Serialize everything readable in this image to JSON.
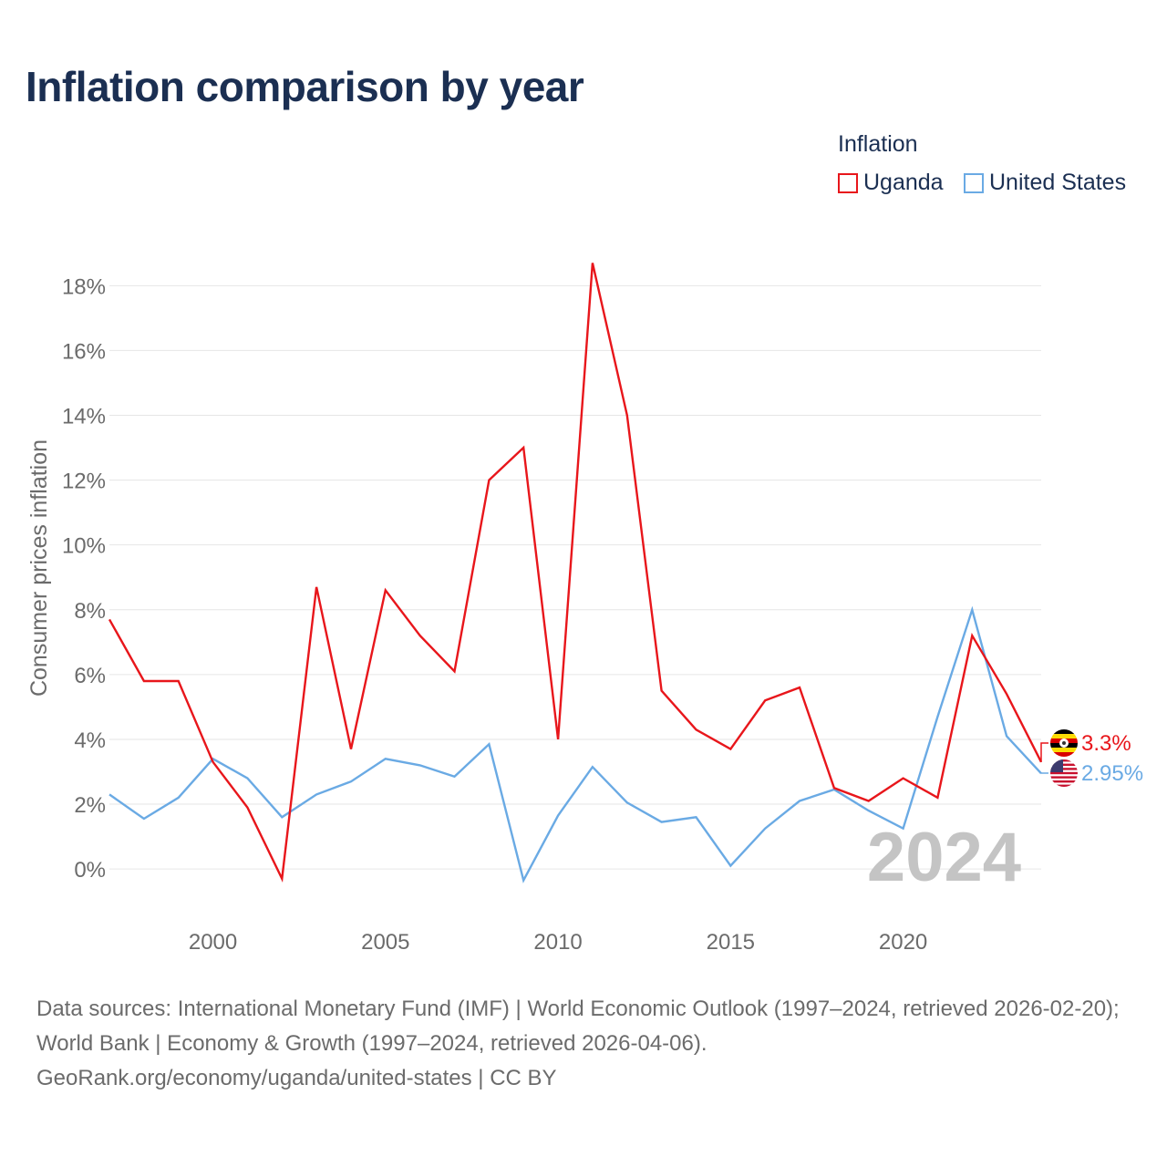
{
  "title": "Inflation comparison by year",
  "legend": {
    "title": "Inflation",
    "items": [
      {
        "label": "Uganda",
        "color": "#e8161b"
      },
      {
        "label": "United States",
        "color": "#6aaae4"
      }
    ]
  },
  "chart_data": {
    "type": "line",
    "title": "Inflation comparison by year",
    "xlabel": "",
    "ylabel": "Consumer prices inflation",
    "x": [
      1997,
      1998,
      1999,
      2000,
      2001,
      2002,
      2003,
      2004,
      2005,
      2006,
      2007,
      2008,
      2009,
      2010,
      2011,
      2012,
      2013,
      2014,
      2015,
      2016,
      2017,
      2018,
      2019,
      2020,
      2021,
      2022,
      2023,
      2024
    ],
    "xlim": [
      1997,
      2024
    ],
    "ylim": [
      -1.6,
      19.5
    ],
    "x_ticks": [
      2000,
      2005,
      2010,
      2015,
      2020
    ],
    "x_tick_labels": [
      "2000",
      "2005",
      "2010",
      "2015",
      "2020"
    ],
    "y_ticks": [
      0,
      2,
      4,
      6,
      8,
      10,
      12,
      14,
      16,
      18
    ],
    "y_tick_labels": [
      "0%",
      "2%",
      "4%",
      "6%",
      "8%",
      "10%",
      "12%",
      "14%",
      "16%",
      "18%"
    ],
    "grid": true,
    "legend_position": "top-right",
    "series": [
      {
        "name": "Uganda",
        "color": "#e8161b",
        "values": [
          7.7,
          5.8,
          5.8,
          3.3,
          1.9,
          -0.3,
          8.7,
          3.7,
          8.6,
          7.2,
          6.1,
          12.0,
          13.0,
          4.0,
          18.7,
          14.0,
          5.5,
          4.3,
          3.7,
          5.2,
          5.6,
          2.5,
          2.1,
          2.8,
          2.2,
          7.2,
          5.4,
          3.3
        ],
        "end_label": "3.3%"
      },
      {
        "name": "United States",
        "color": "#6aaae4",
        "values": [
          2.3,
          1.55,
          2.2,
          3.4,
          2.8,
          1.6,
          2.3,
          2.7,
          3.4,
          3.2,
          2.85,
          3.85,
          -0.35,
          1.65,
          3.15,
          2.05,
          1.45,
          1.6,
          0.1,
          1.25,
          2.1,
          2.45,
          1.8,
          1.25,
          4.7,
          8.0,
          4.1,
          2.95
        ],
        "end_label": "2.95%"
      }
    ],
    "year_watermark": "2024"
  },
  "sources": {
    "line1": "Data sources: International Monetary Fund (IMF) | World Economic Outlook (1997–2024, retrieved 2026-02-20); World Bank | Economy & Growth (1997–2024, retrieved 2026-04-06).",
    "line2": "GeoRank.org/economy/uganda/united-states | CC BY"
  }
}
